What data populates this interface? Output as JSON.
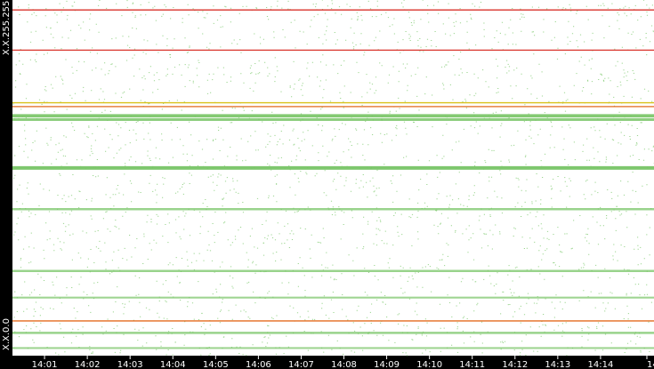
{
  "chart_data": {
    "type": "scatter",
    "title": "",
    "xlabel": "",
    "ylabel": "",
    "y_range_labels": {
      "top": "X.X.255.255",
      "bottom": "X.X.0.0"
    },
    "x_ticks": [
      "14:01",
      "14:02",
      "14:03",
      "14:04",
      "14:05",
      "14:06",
      "14:07",
      "14:08",
      "14:09",
      "14:10",
      "14:11",
      "14:12",
      "14:13",
      "14:14",
      "14"
    ],
    "xlim": [
      "14:00:15",
      "14:15:15"
    ],
    "ylim": [
      0,
      65535
    ],
    "grid": false,
    "legend": "none",
    "colors": {
      "background": "#000000",
      "plot_background": "#ffffff",
      "point": "#7cc86b",
      "band": "#78c566",
      "line_red": "#d9332b",
      "line_orange": "#e36a1e",
      "line_yellow": "#d8c21a"
    },
    "series": [
      {
        "name": "",
        "note_color": "red",
        "y_band": 63700
      },
      {
        "name": "",
        "note_color": "red",
        "y_band": 56300
      },
      {
        "name": "",
        "note_color": "yellow",
        "y_band": 46600
      },
      {
        "name": "",
        "note_color": "orange",
        "y_band": 45900
      },
      {
        "name": "",
        "note_color": "orange",
        "y_band": 6400
      }
    ],
    "dense_bands": [
      {
        "y": 44200,
        "strength": 0.9
      },
      {
        "y": 43500,
        "strength": 0.7
      },
      {
        "y": 34600,
        "strength": 1.0
      },
      {
        "y": 27000,
        "strength": 0.5
      },
      {
        "y": 15600,
        "strength": 0.5
      },
      {
        "y": 10700,
        "strength": 0.4
      },
      {
        "y": 4200,
        "strength": 0.5
      },
      {
        "y": 1400,
        "strength": 0.4
      }
    ]
  }
}
